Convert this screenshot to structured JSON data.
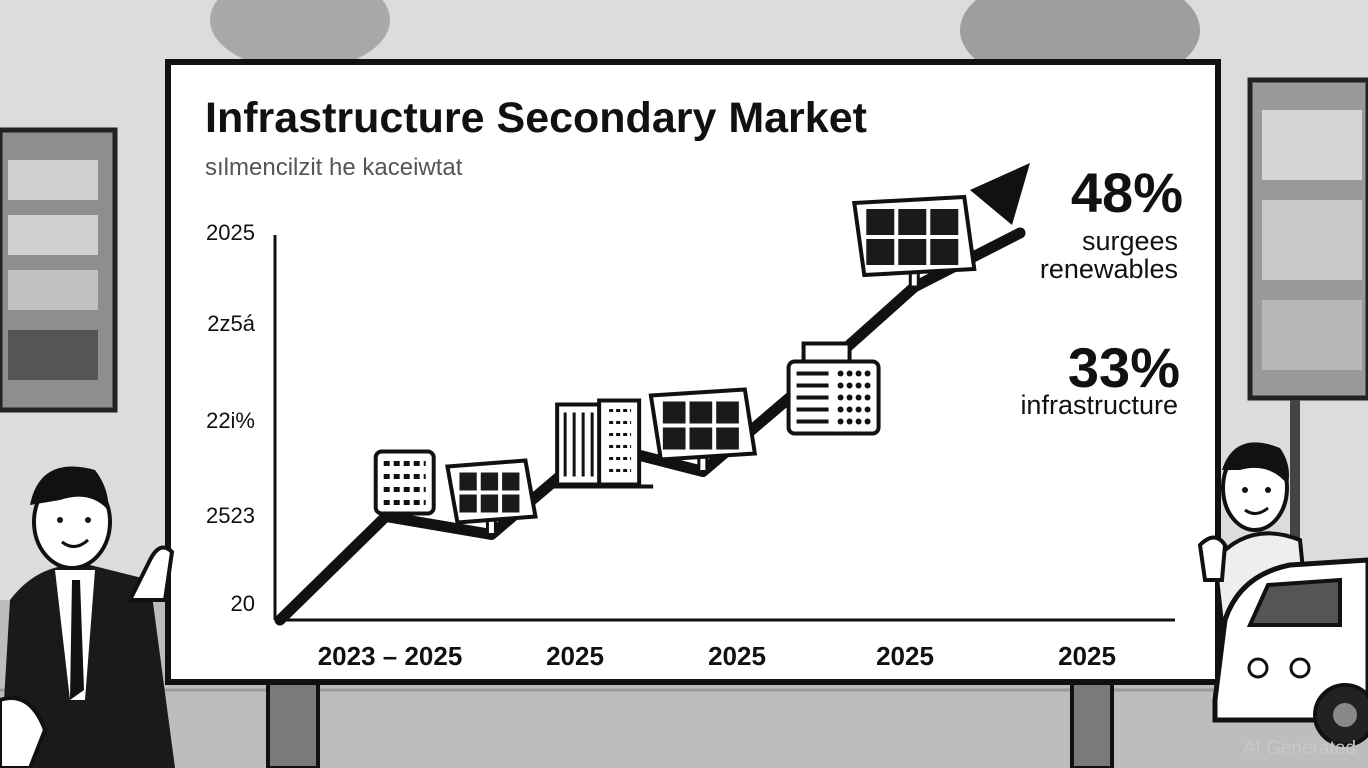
{
  "chart_data": {
    "type": "line",
    "title": "Infrastructure Secondary Market",
    "subtitle": "sılmencilzit he kaceiwtat",
    "xlabel": "",
    "ylabel": "",
    "x_tick_labels": [
      "2023 – 2025",
      "2025",
      "2025",
      "2025",
      "2025"
    ],
    "y_tick_labels": [
      "2025",
      "2z5á",
      "22i%",
      "2523",
      "20"
    ],
    "series": [
      {
        "values": [
          0,
          2.3,
          1.9,
          3.9,
          3.3,
          5.3,
          7.4,
          8.6
        ]
      }
    ],
    "markers": [
      "server-stack",
      "solar-panel",
      "office-building",
      "solar-panel",
      "data-center",
      "solar-panel"
    ],
    "ylim": [
      0,
      10
    ],
    "grid": false,
    "legend": "none"
  },
  "callouts": [
    {
      "value": "48%",
      "label_line1": "surgees",
      "label_line2": "renewables"
    },
    {
      "value": "33%",
      "label_line1": "infrastructure",
      "label_line2": ""
    }
  ],
  "watermark": "AI Generated",
  "colors": {
    "ink": "#111111",
    "board": "#ffffff",
    "background": "#d9d9d9"
  }
}
